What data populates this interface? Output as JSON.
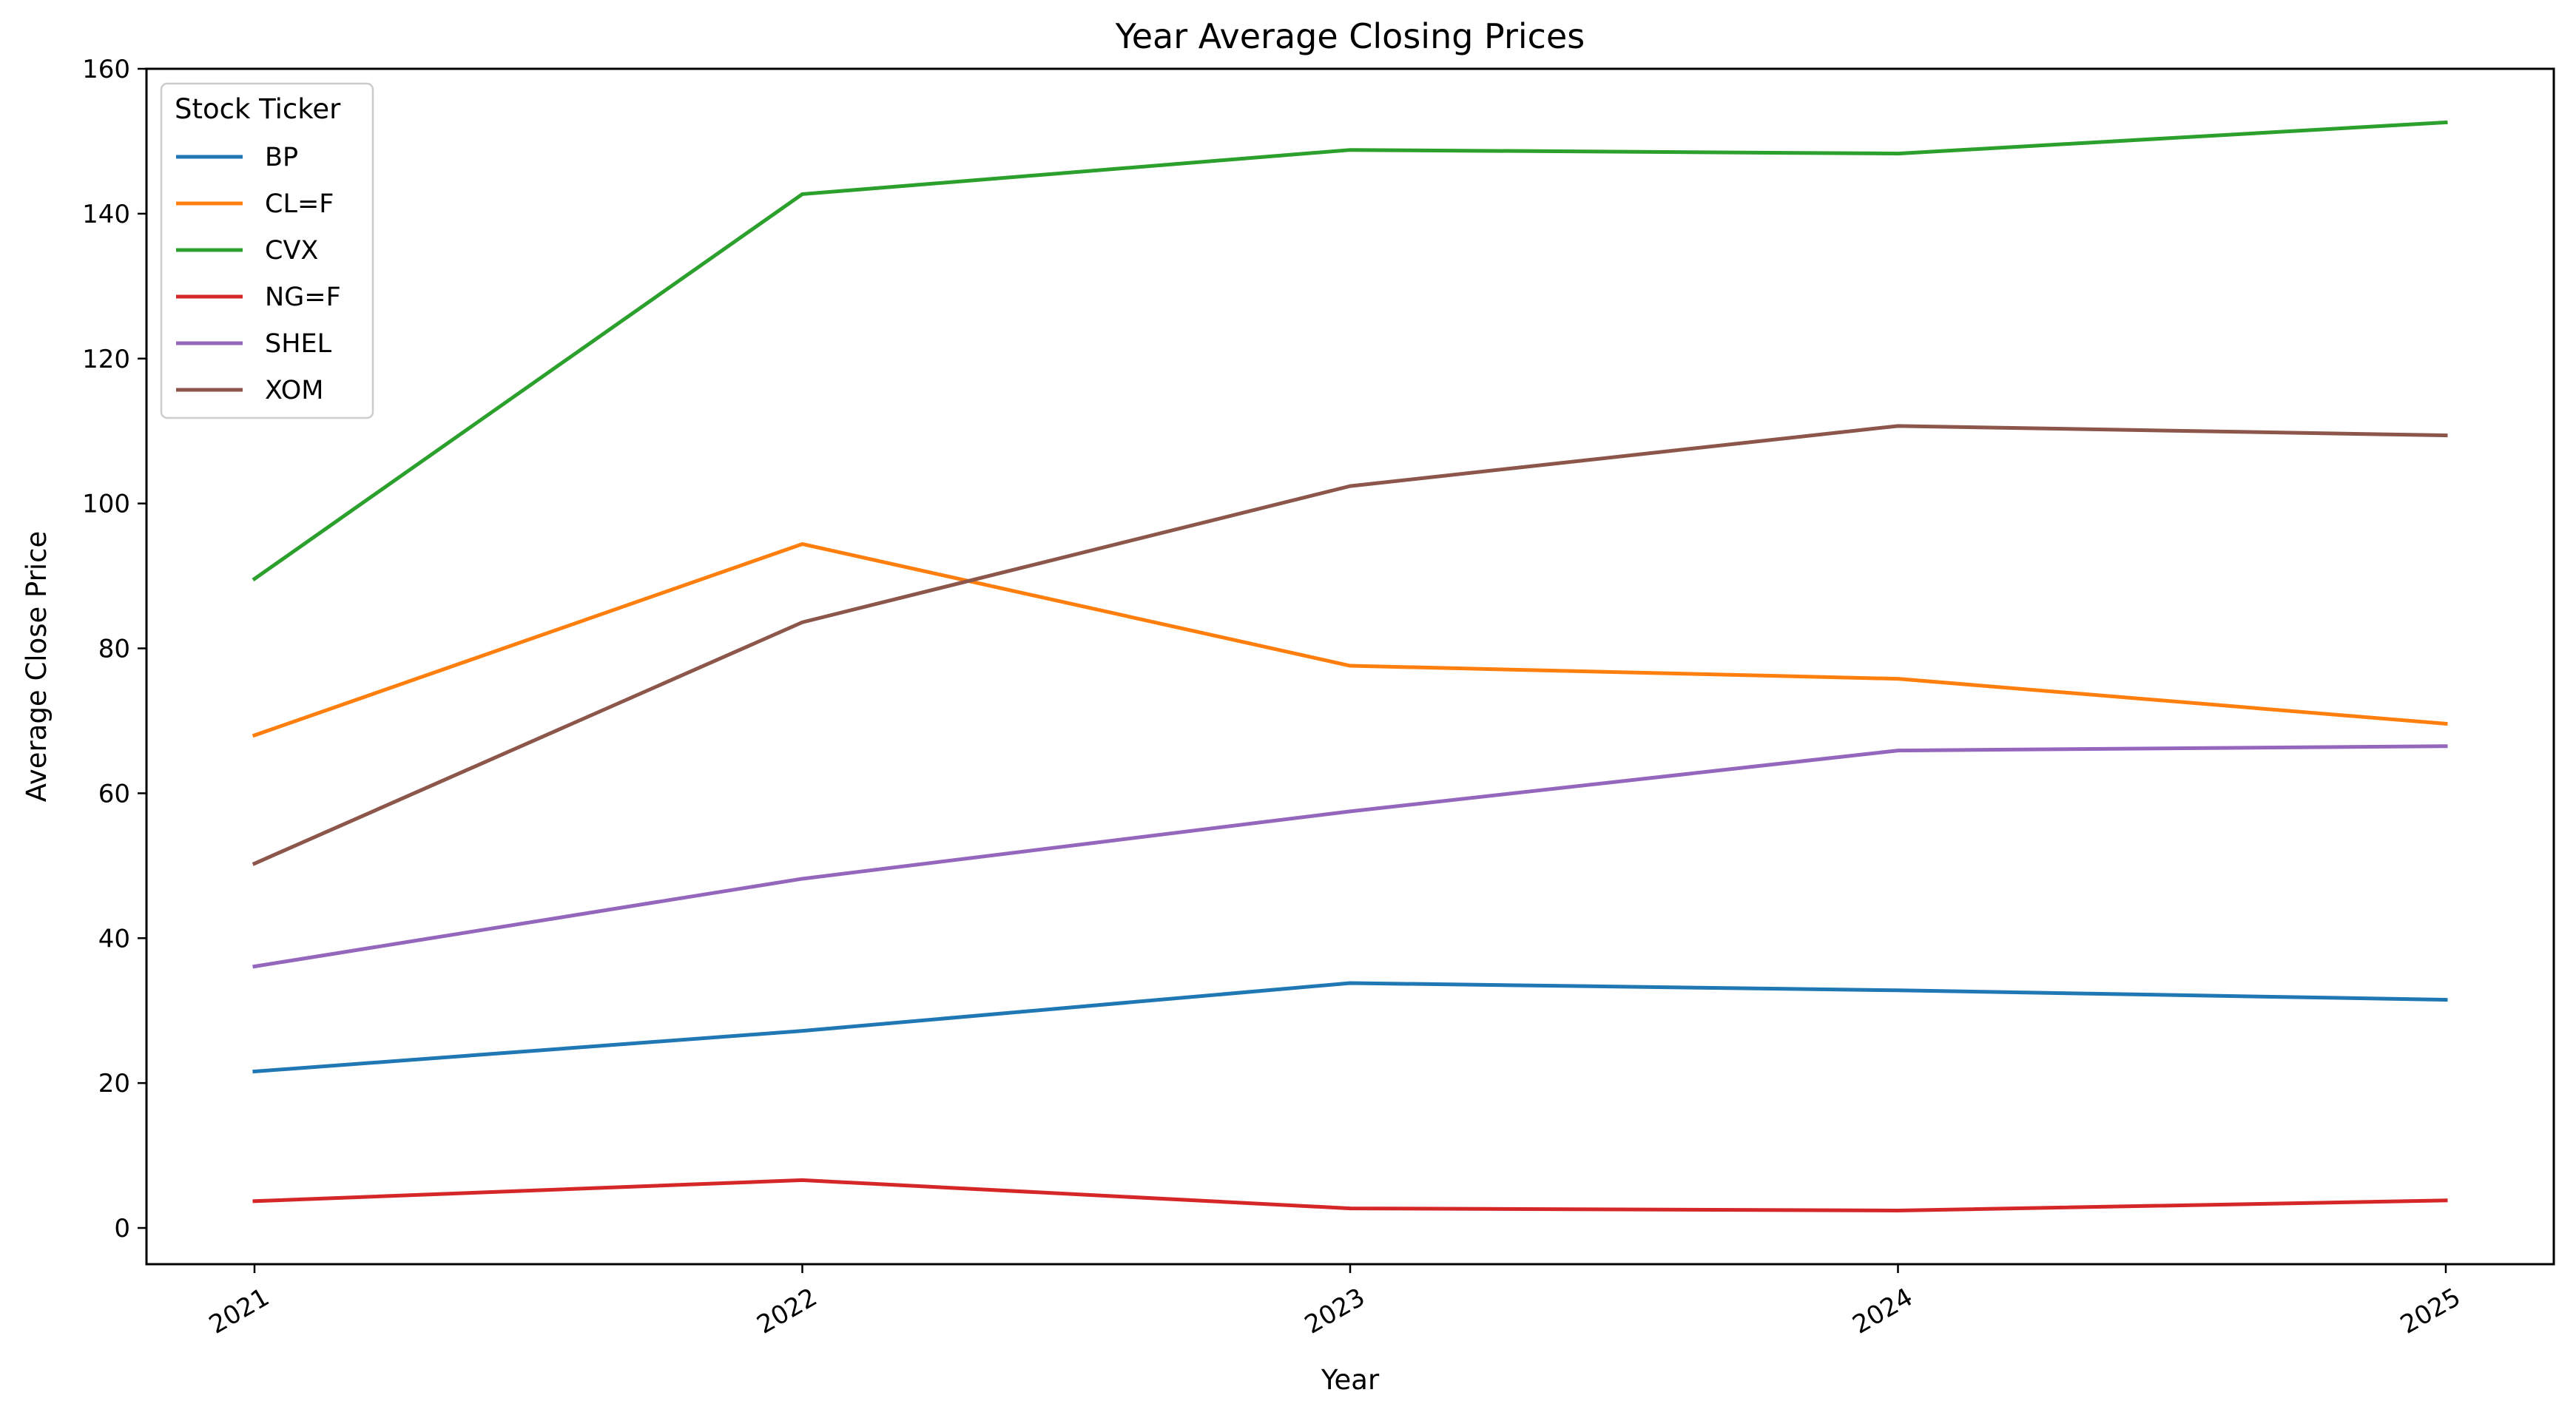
{
  "chart_data": {
    "type": "line",
    "title": "Year Average Closing Prices",
    "xlabel": "Year",
    "ylabel": "Average Close Price",
    "categories": [
      "2021",
      "2022",
      "2023",
      "2024",
      "2025"
    ],
    "ylim": [
      -5,
      160
    ],
    "yticks": [
      0,
      20,
      40,
      60,
      80,
      100,
      120,
      140,
      160
    ],
    "grid": false,
    "legend": {
      "title": "Stock Ticker",
      "placement": "top-left"
    },
    "series": [
      {
        "name": "BP",
        "color": "#1f77b4",
        "values": [
          21.6,
          27.2,
          33.8,
          32.8,
          31.5
        ]
      },
      {
        "name": "CL=F",
        "color": "#ff7f0e",
        "values": [
          68.0,
          94.4,
          77.6,
          75.8,
          69.6
        ]
      },
      {
        "name": "CVX",
        "color": "#2ca02c",
        "values": [
          89.6,
          142.7,
          148.8,
          148.3,
          152.6
        ]
      },
      {
        "name": "NG=F",
        "color": "#d62728",
        "values": [
          3.7,
          6.6,
          2.7,
          2.4,
          3.8
        ]
      },
      {
        "name": "SHEL",
        "color": "#9467bd",
        "values": [
          36.1,
          48.2,
          57.5,
          65.9,
          66.5
        ]
      },
      {
        "name": "XOM",
        "color": "#8c564b",
        "values": [
          50.3,
          83.6,
          102.4,
          110.7,
          109.4
        ]
      }
    ]
  }
}
